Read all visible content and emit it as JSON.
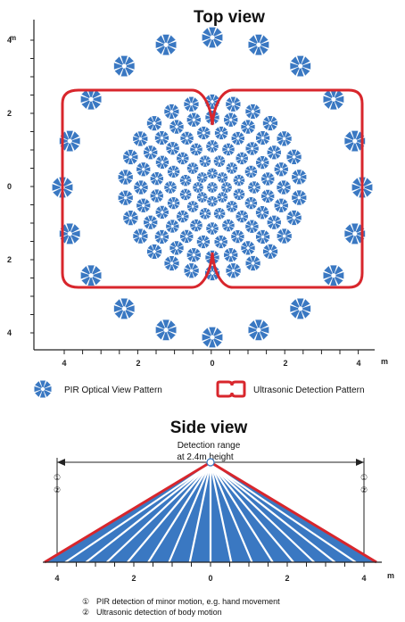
{
  "top_view": {
    "title": "Top view",
    "y_unit": "m",
    "x_unit": "m",
    "y_ticks": [
      "4",
      "2",
      "0",
      "2",
      "4"
    ],
    "x_ticks": [
      "4",
      "2",
      "0",
      "2",
      "4"
    ]
  },
  "legend": {
    "pir_label": "PIR Optical View Pattern",
    "ultrasonic_label": "Ultrasonic Detection Pattern"
  },
  "side_view": {
    "title": "Side view",
    "detection_range_line1": "Detection range",
    "detection_range_line2": "at 2.4m height",
    "marker_1": "①",
    "marker_2": "②",
    "x_ticks": [
      "4",
      "2",
      "0",
      "2",
      "4"
    ],
    "x_unit": "m"
  },
  "notes": [
    {
      "marker": "①",
      "text": "PIR detection of minor motion, e.g. hand movement"
    },
    {
      "marker": "②",
      "text": "Ultrasonic detection of body motion"
    }
  ],
  "colors": {
    "pir_blue": "#3a78c2",
    "ultrasonic_red": "#d8262c",
    "axis": "#222222"
  }
}
